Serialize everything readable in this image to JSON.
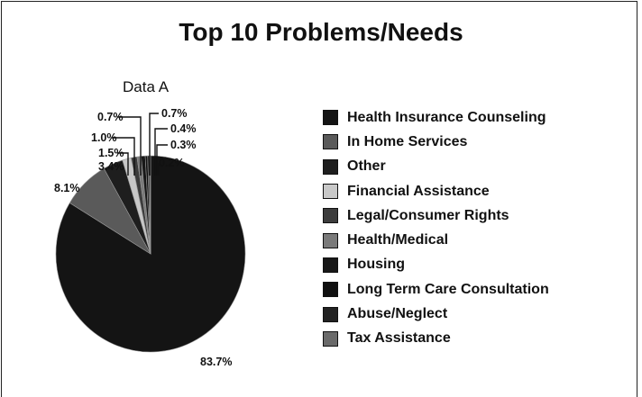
{
  "chart_data": {
    "type": "pie",
    "title": "Top 10 Problems/Needs",
    "subtitle": "Data A",
    "categories": [
      "Health Insurance Counseling",
      "In Home Services",
      "Other",
      "Financial Assistance",
      "Legal/Consumer Rights",
      "Health/Medical",
      "Housing",
      "Long Term Care Consultation",
      "Abuse/Neglect",
      "Tax Assistance"
    ],
    "values": [
      83.7,
      8.1,
      3.4,
      1.5,
      1.0,
      0.7,
      0.7,
      0.4,
      0.3,
      0.2
    ],
    "value_labels": [
      "83.7%",
      "8.1%",
      "3.4%",
      "1.5%",
      "1.0%",
      "0.7%",
      "0.7%",
      "0.4%",
      "0.3%",
      "0.2%"
    ],
    "colors": [
      "#141414",
      "#5a5a5a",
      "#1e1e1e",
      "#c8c8c8",
      "#3c3c3c",
      "#7a7a7a",
      "#181818",
      "#101010",
      "#222222",
      "#6a6a6a"
    ],
    "legend_position": "right"
  }
}
